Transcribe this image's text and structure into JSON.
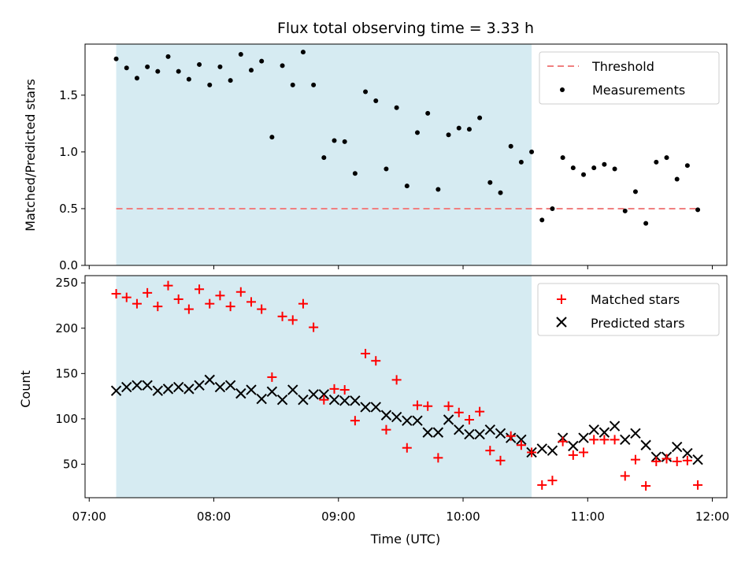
{
  "chart_data": {
    "title": "Flux total observing time = 3.33 h",
    "colors": {
      "shade": "#add8e6",
      "threshold": "#f08080",
      "measurement": "#000000",
      "matched": "#ff0000",
      "predicted": "#000000"
    },
    "x": {
      "label": "Time (UTC)",
      "range": [
        "06:58",
        "12:07"
      ],
      "ticks": [
        "07:00",
        "08:00",
        "09:00",
        "10:00",
        "11:00",
        "12:00"
      ],
      "shaded_span": [
        "07:13",
        "10:33"
      ]
    },
    "panels": [
      {
        "type": "scatter",
        "ylabel": "Matched/Predicted stars",
        "ylim": [
          0,
          1.95
        ],
        "yticks": [
          0.0,
          0.5,
          1.0,
          1.5
        ],
        "yticklabels": [
          "0.0",
          "0.5",
          "1.0",
          "1.5"
        ],
        "legend_position": "top-right",
        "threshold": {
          "name": "Threshold",
          "value": 0.5,
          "x_range": [
            "07:13",
            "11:53"
          ]
        },
        "series": [
          {
            "name": "Measurements",
            "marker": "dot",
            "points": [
              [
                "07:13",
                1.82
              ],
              [
                "07:18",
                1.74
              ],
              [
                "07:23",
                1.65
              ],
              [
                "07:28",
                1.75
              ],
              [
                "07:33",
                1.71
              ],
              [
                "07:38",
                1.84
              ],
              [
                "07:43",
                1.71
              ],
              [
                "07:48",
                1.64
              ],
              [
                "07:53",
                1.77
              ],
              [
                "07:58",
                1.59
              ],
              [
                "08:03",
                1.75
              ],
              [
                "08:08",
                1.63
              ],
              [
                "08:13",
                1.86
              ],
              [
                "08:18",
                1.72
              ],
              [
                "08:23",
                1.8
              ],
              [
                "08:28",
                1.13
              ],
              [
                "08:33",
                1.76
              ],
              [
                "08:38",
                1.59
              ],
              [
                "08:43",
                1.88
              ],
              [
                "08:48",
                1.59
              ],
              [
                "08:53",
                0.95
              ],
              [
                "08:58",
                1.1
              ],
              [
                "09:03",
                1.09
              ],
              [
                "09:08",
                0.81
              ],
              [
                "09:13",
                1.53
              ],
              [
                "09:18",
                1.45
              ],
              [
                "09:23",
                0.85
              ],
              [
                "09:28",
                1.39
              ],
              [
                "09:33",
                0.7
              ],
              [
                "09:38",
                1.17
              ],
              [
                "09:43",
                1.34
              ],
              [
                "09:48",
                0.67
              ],
              [
                "09:53",
                1.15
              ],
              [
                "09:58",
                1.21
              ],
              [
                "10:03",
                1.2
              ],
              [
                "10:08",
                1.3
              ],
              [
                "10:13",
                0.73
              ],
              [
                "10:18",
                0.64
              ],
              [
                "10:23",
                1.05
              ],
              [
                "10:28",
                0.91
              ],
              [
                "10:33",
                1.0
              ],
              [
                "10:38",
                0.4
              ],
              [
                "10:43",
                0.5
              ],
              [
                "10:48",
                0.95
              ],
              [
                "10:53",
                0.86
              ],
              [
                "10:58",
                0.8
              ],
              [
                "11:03",
                0.86
              ],
              [
                "11:08",
                0.89
              ],
              [
                "11:13",
                0.85
              ],
              [
                "11:18",
                0.48
              ],
              [
                "11:23",
                0.65
              ],
              [
                "11:28",
                0.37
              ],
              [
                "11:33",
                0.91
              ],
              [
                "11:38",
                0.95
              ],
              [
                "11:43",
                0.76
              ],
              [
                "11:48",
                0.88
              ],
              [
                "11:53",
                0.49
              ]
            ]
          }
        ]
      },
      {
        "type": "scatter",
        "ylabel": "Count",
        "ylim": [
          13,
          258
        ],
        "yticks": [
          50,
          100,
          150,
          200,
          250
        ],
        "yticklabels": [
          "50",
          "100",
          "150",
          "200",
          "250"
        ],
        "legend_position": "top-right",
        "series": [
          {
            "name": "Matched stars",
            "marker": "plus",
            "points": [
              [
                "07:13",
                238
              ],
              [
                "07:18",
                234
              ],
              [
                "07:23",
                227
              ],
              [
                "07:28",
                239
              ],
              [
                "07:33",
                224
              ],
              [
                "07:38",
                247
              ],
              [
                "07:43",
                232
              ],
              [
                "07:48",
                221
              ],
              [
                "07:53",
                243
              ],
              [
                "07:58",
                227
              ],
              [
                "08:03",
                236
              ],
              [
                "08:08",
                224
              ],
              [
                "08:13",
                240
              ],
              [
                "08:18",
                229
              ],
              [
                "08:23",
                221
              ],
              [
                "08:28",
                146
              ],
              [
                "08:33",
                213
              ],
              [
                "08:38",
                209
              ],
              [
                "08:43",
                227
              ],
              [
                "08:48",
                201
              ],
              [
                "08:53",
                121
              ],
              [
                "08:58",
                133
              ],
              [
                "09:03",
                132
              ],
              [
                "09:08",
                98
              ],
              [
                "09:13",
                172
              ],
              [
                "09:18",
                164
              ],
              [
                "09:23",
                88
              ],
              [
                "09:28",
                143
              ],
              [
                "09:33",
                68
              ],
              [
                "09:38",
                115
              ],
              [
                "09:43",
                114
              ],
              [
                "09:48",
                57
              ],
              [
                "09:53",
                114
              ],
              [
                "09:58",
                107
              ],
              [
                "10:03",
                99
              ],
              [
                "10:08",
                108
              ],
              [
                "10:13",
                65
              ],
              [
                "10:18",
                54
              ],
              [
                "10:23",
                81
              ],
              [
                "10:28",
                71
              ],
              [
                "10:33",
                63
              ],
              [
                "10:38",
                27
              ],
              [
                "10:43",
                32
              ],
              [
                "10:48",
                75
              ],
              [
                "10:53",
                60
              ],
              [
                "10:58",
                63
              ],
              [
                "11:03",
                77
              ],
              [
                "11:08",
                77
              ],
              [
                "11:13",
                77
              ],
              [
                "11:18",
                37
              ],
              [
                "11:23",
                55
              ],
              [
                "11:28",
                26
              ],
              [
                "11:33",
                53
              ],
              [
                "11:38",
                56
              ],
              [
                "11:43",
                53
              ],
              [
                "11:48",
                54
              ],
              [
                "11:53",
                27
              ]
            ]
          },
          {
            "name": "Predicted stars",
            "marker": "x",
            "points": [
              [
                "07:13",
                131
              ],
              [
                "07:18",
                135
              ],
              [
                "07:23",
                137
              ],
              [
                "07:28",
                137
              ],
              [
                "07:33",
                131
              ],
              [
                "07:38",
                133
              ],
              [
                "07:43",
                135
              ],
              [
                "07:48",
                133
              ],
              [
                "07:53",
                137
              ],
              [
                "07:58",
                143
              ],
              [
                "08:03",
                135
              ],
              [
                "08:08",
                137
              ],
              [
                "08:13",
                128
              ],
              [
                "08:18",
                132
              ],
              [
                "08:23",
                122
              ],
              [
                "08:28",
                130
              ],
              [
                "08:33",
                121
              ],
              [
                "08:38",
                132
              ],
              [
                "08:43",
                121
              ],
              [
                "08:48",
                127
              ],
              [
                "08:53",
                127
              ],
              [
                "08:58",
                121
              ],
              [
                "09:03",
                120
              ],
              [
                "09:08",
                120
              ],
              [
                "09:13",
                113
              ],
              [
                "09:18",
                113
              ],
              [
                "09:23",
                104
              ],
              [
                "09:28",
                102
              ],
              [
                "09:33",
                98
              ],
              [
                "09:38",
                98
              ],
              [
                "09:43",
                85
              ],
              [
                "09:48",
                85
              ],
              [
                "09:53",
                99
              ],
              [
                "09:58",
                88
              ],
              [
                "10:03",
                83
              ],
              [
                "10:08",
                83
              ],
              [
                "10:13",
                88
              ],
              [
                "10:18",
                84
              ],
              [
                "10:23",
                79
              ],
              [
                "10:28",
                77
              ],
              [
                "10:33",
                63
              ],
              [
                "10:38",
                67
              ],
              [
                "10:43",
                65
              ],
              [
                "10:48",
                79
              ],
              [
                "10:53",
                70
              ],
              [
                "10:58",
                79
              ],
              [
                "11:03",
                88
              ],
              [
                "11:08",
                85
              ],
              [
                "11:13",
                92
              ],
              [
                "11:18",
                77
              ],
              [
                "11:23",
                84
              ],
              [
                "11:28",
                71
              ],
              [
                "11:33",
                58
              ],
              [
                "11:38",
                58
              ],
              [
                "11:43",
                69
              ],
              [
                "11:48",
                62
              ],
              [
                "11:53",
                55
              ]
            ]
          }
        ]
      }
    ]
  }
}
